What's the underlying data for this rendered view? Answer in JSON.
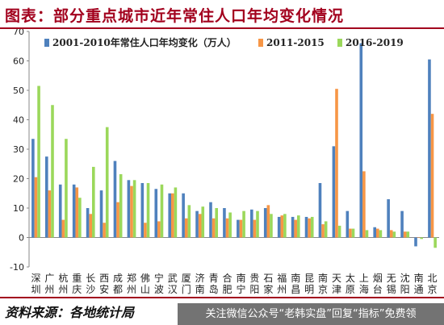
{
  "header": {
    "title": "图表：部分重点城市近年常住人口年均变化情况"
  },
  "footer": {
    "source": "资料来源：各地统计局",
    "watermark": "关注微信公众号“老韩实盘”回复“指标”免费领"
  },
  "colors": {
    "title": "#a2001d",
    "series": [
      "#4f81bd",
      "#f79646",
      "#9bd85b"
    ]
  },
  "chart_data": {
    "type": "bar",
    "ylim": [
      -10,
      70
    ],
    "yticks": [
      -10,
      0,
      10,
      20,
      30,
      40,
      50,
      60,
      70
    ],
    "legend_position": "top",
    "categories": [
      "深圳",
      "广州",
      "杭州",
      "重庆",
      "长沙",
      "西安",
      "成都",
      "郑州",
      "佛山",
      "宁波",
      "武汉",
      "厦门",
      "济南",
      "青岛",
      "合肥",
      "南宁",
      "贵阳",
      "石家庄",
      "福州",
      "南昌",
      "昆明",
      "南京",
      "天津",
      "太原",
      "上海",
      "烟台",
      "无锡",
      "沈阳",
      "南通",
      "北京"
    ],
    "series": [
      {
        "name": "2001-2010年常住人口年均变化（万人）",
        "values": [
          33.5,
          27.5,
          18,
          18,
          10,
          16,
          26,
          19.5,
          18.5,
          16.5,
          15,
          15,
          9,
          12,
          10,
          6,
          9.5,
          10,
          7,
          7,
          7,
          18.5,
          31,
          9,
          66,
          3.5,
          13,
          9,
          -3,
          60.5
        ]
      },
      {
        "name": "2011-2015",
        "values": [
          20.5,
          16,
          6,
          17,
          8,
          5,
          12,
          17.5,
          5,
          5.5,
          15,
          6.5,
          8,
          6.5,
          6.5,
          6,
          6,
          11,
          7.5,
          6,
          6.5,
          4.5,
          50.5,
          3,
          22.5,
          3,
          2.5,
          2,
          0,
          42
        ]
      },
      {
        "name": "2016-2019",
        "values": [
          51.5,
          45,
          33.5,
          13.5,
          24,
          37.5,
          21.5,
          19.5,
          18.5,
          18,
          17,
          11,
          10.5,
          10,
          8.5,
          9,
          9,
          8,
          8,
          7.5,
          7,
          5.5,
          4,
          3,
          2.5,
          2.5,
          2,
          2,
          -0.5,
          -3.5
        ]
      }
    ]
  }
}
